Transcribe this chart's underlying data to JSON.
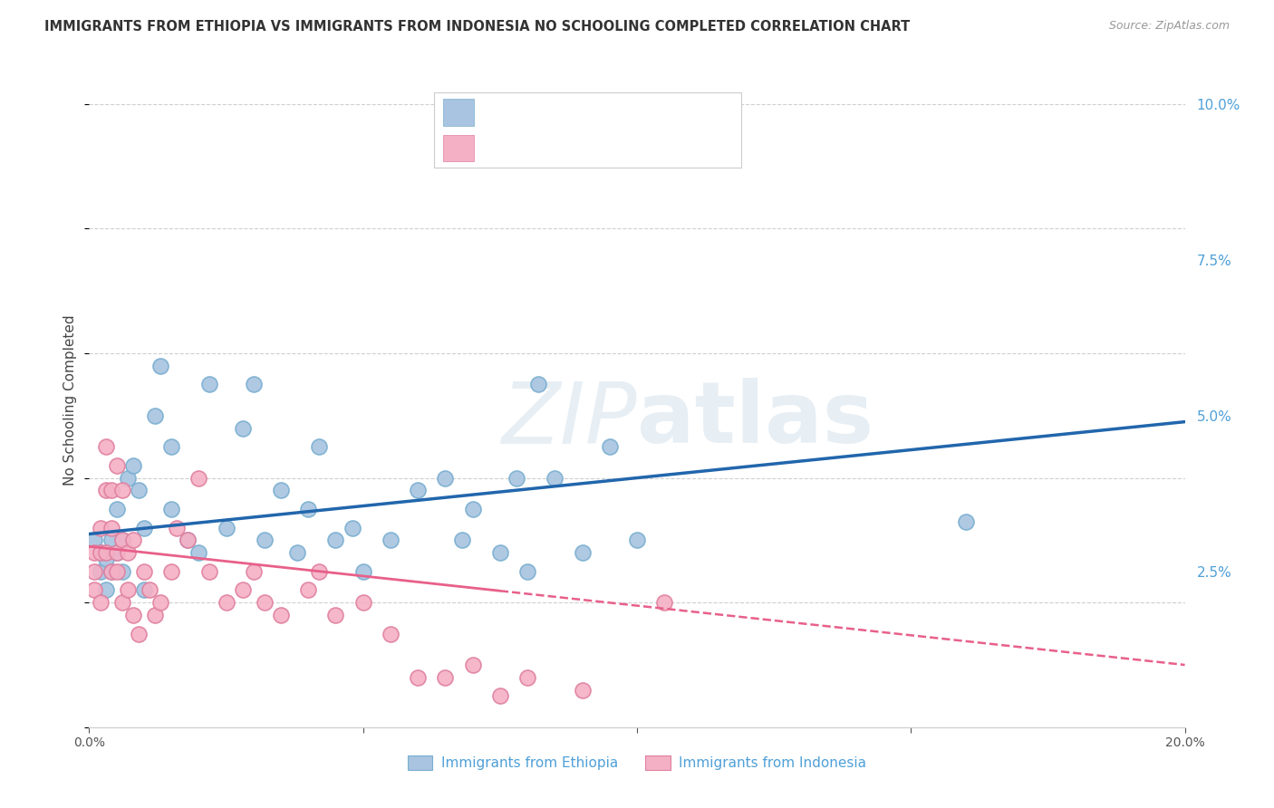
{
  "title": "IMMIGRANTS FROM ETHIOPIA VS IMMIGRANTS FROM INDONESIA NO SCHOOLING COMPLETED CORRELATION CHART",
  "source": "Source: ZipAtlas.com",
  "ylabel": "No Schooling Completed",
  "xlim": [
    0.0,
    0.2
  ],
  "ylim": [
    0.0,
    0.105
  ],
  "eth_color": "#a8c4e0",
  "eth_edge_color": "#7aafd0",
  "eth_line_color": "#2166ac",
  "ind_color": "#f4b0c4",
  "ind_edge_color": "#e080a0",
  "ind_line_color": "#e8608a",
  "watermark_color": "#d8e4ee",
  "grid_color": "#bbbbbb",
  "background_color": "#ffffff",
  "title_color": "#333333",
  "source_color": "#999999",
  "right_tick_color": "#4fa0d8",
  "legend_label1": "Immigrants from Ethiopia",
  "legend_label2": "Immigrants from Indonesia",
  "eth_x": [
    0.001,
    0.002,
    0.002,
    0.003,
    0.003,
    0.004,
    0.004,
    0.005,
    0.005,
    0.006,
    0.006,
    0.007,
    0.008,
    0.009,
    0.01,
    0.01,
    0.012,
    0.013,
    0.015,
    0.015,
    0.018,
    0.02,
    0.022,
    0.025,
    0.028,
    0.03,
    0.032,
    0.035,
    0.038,
    0.04,
    0.042,
    0.045,
    0.048,
    0.05,
    0.055,
    0.06,
    0.065,
    0.068,
    0.07,
    0.075,
    0.078,
    0.08,
    0.082,
    0.085,
    0.09,
    0.095,
    0.1,
    0.16
  ],
  "eth_y": [
    0.03,
    0.025,
    0.028,
    0.027,
    0.022,
    0.025,
    0.03,
    0.028,
    0.035,
    0.025,
    0.03,
    0.04,
    0.042,
    0.038,
    0.032,
    0.022,
    0.05,
    0.058,
    0.045,
    0.035,
    0.03,
    0.028,
    0.055,
    0.032,
    0.048,
    0.055,
    0.03,
    0.038,
    0.028,
    0.035,
    0.045,
    0.03,
    0.032,
    0.025,
    0.03,
    0.038,
    0.04,
    0.03,
    0.035,
    0.028,
    0.04,
    0.025,
    0.055,
    0.04,
    0.028,
    0.045,
    0.03,
    0.033
  ],
  "ind_x": [
    0.001,
    0.001,
    0.001,
    0.002,
    0.002,
    0.002,
    0.003,
    0.003,
    0.003,
    0.004,
    0.004,
    0.004,
    0.005,
    0.005,
    0.005,
    0.006,
    0.006,
    0.006,
    0.007,
    0.007,
    0.008,
    0.008,
    0.009,
    0.01,
    0.011,
    0.012,
    0.013,
    0.015,
    0.016,
    0.018,
    0.02,
    0.022,
    0.025,
    0.028,
    0.03,
    0.032,
    0.035,
    0.04,
    0.042,
    0.045,
    0.05,
    0.055,
    0.06,
    0.065,
    0.07,
    0.075,
    0.08,
    0.09,
    0.105
  ],
  "ind_y": [
    0.025,
    0.022,
    0.028,
    0.02,
    0.028,
    0.032,
    0.028,
    0.038,
    0.045,
    0.025,
    0.032,
    0.038,
    0.025,
    0.028,
    0.042,
    0.02,
    0.03,
    0.038,
    0.022,
    0.028,
    0.018,
    0.03,
    0.015,
    0.025,
    0.022,
    0.018,
    0.02,
    0.025,
    0.032,
    0.03,
    0.04,
    0.025,
    0.02,
    0.022,
    0.025,
    0.02,
    0.018,
    0.022,
    0.025,
    0.018,
    0.02,
    0.015,
    0.008,
    0.008,
    0.01,
    0.005,
    0.008,
    0.006,
    0.02
  ],
  "eth_line_x0": 0.0,
  "eth_line_x1": 0.2,
  "eth_line_y0": 0.031,
  "eth_line_y1": 0.049,
  "ind_line_x0": 0.0,
  "ind_line_x1": 0.2,
  "ind_line_y0": 0.029,
  "ind_line_y1": 0.01
}
